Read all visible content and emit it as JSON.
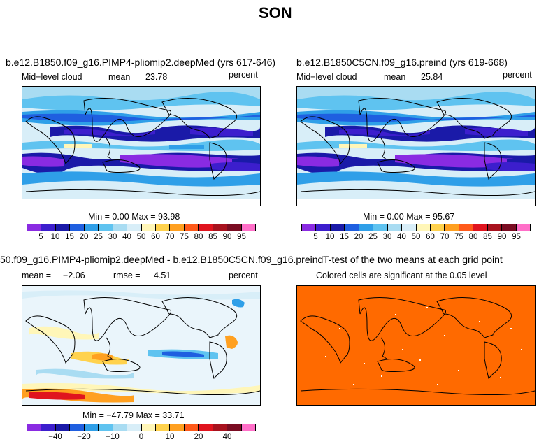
{
  "title": "SON",
  "panels": {
    "top_left": {
      "title": "b.e12.B1850.f09_g16.PIMP4-pliomip2.deepMed (yrs 617-646)",
      "variable": "Mid−level cloud",
      "mean_label": "mean=",
      "mean_value": "23.78",
      "units": "percent",
      "minmax": "Min =    0.00 Max =   93.98"
    },
    "top_right": {
      "title": "b.e12.B1850C5CN.f09_g16.preind (yrs 619-668)",
      "variable": "Mid−level cloud",
      "mean_label": "mean=",
      "mean_value": "25.84",
      "units": "percent",
      "minmax": "Min =    0.00 Max =   95.67"
    },
    "bottom_left": {
      "title": "50.f09_g16.PIMP4-pliomip2.deepMed - b.e12.B1850C5CN.f09_g16.preind",
      "mean_label": "mean =",
      "mean_value": "−2.06",
      "rmse_label": "rmse =",
      "rmse_value": "4.51",
      "units": "percent",
      "minmax": "Min = −47.79 Max =   33.71"
    },
    "bottom_right": {
      "title": "T-test of the two means at each grid point",
      "subtitle": "Colored cells are significant at the 0.05 level"
    }
  },
  "colorbar_abs": {
    "labels": [
      "5",
      "10",
      "15",
      "20",
      "25",
      "30",
      "40",
      "50",
      "60",
      "70",
      "75",
      "80",
      "85",
      "90",
      "95"
    ],
    "colors": [
      "#8a2be2",
      "#3c1ecd",
      "#1a1aa8",
      "#1f5fe0",
      "#2f9fe8",
      "#5fc3f0",
      "#a9dcf2",
      "#d8eef8",
      "#fff6b8",
      "#ffd24d",
      "#ffa020",
      "#ff5a1a",
      "#e0141e",
      "#a8121e",
      "#7a0c22",
      "#ff6fc8"
    ]
  },
  "colorbar_diff": {
    "labels": [
      "−40",
      "−20",
      "−10",
      "0",
      "10",
      "20",
      "40"
    ],
    "colors": [
      "#8a2be2",
      "#3c1ecd",
      "#1a1aa8",
      "#1f5fe0",
      "#2f9fe8",
      "#5fc3f0",
      "#a9dcf2",
      "#d8eef8",
      "#fff6b8",
      "#ffd24d",
      "#ffa020",
      "#ff5a1a",
      "#e0141e",
      "#a8121e",
      "#7a0c22",
      "#ff6fc8"
    ]
  },
  "colors": {
    "ttest_fill": "#ff6a00",
    "map_bg_abs": "#d8eef8",
    "map_bg_diff": "#eaf5fb"
  }
}
